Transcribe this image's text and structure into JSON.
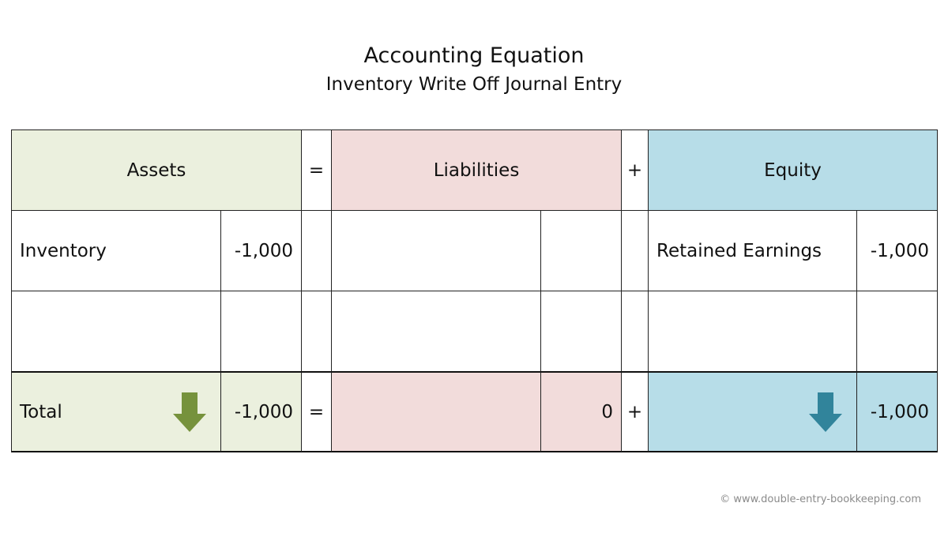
{
  "title": "Accounting Equation",
  "subtitle": "Inventory Write Off Journal Entry",
  "headers": {
    "assets": "Assets",
    "equals": "=",
    "liabilities": "Liabilities",
    "plus": "+",
    "equity": "Equity"
  },
  "rows": [
    {
      "asset_label": "Inventory",
      "asset_value": "-1,000",
      "liability_label": "",
      "liability_value": "",
      "equity_label": "Retained Earnings",
      "equity_value": "-1,000"
    },
    {
      "asset_label": "",
      "asset_value": "",
      "liability_label": "",
      "liability_value": "",
      "equity_label": "",
      "equity_value": ""
    }
  ],
  "total": {
    "label": "Total",
    "asset_value": "-1,000",
    "equals": "=",
    "liability_value": "0",
    "plus": "+",
    "equity_value": "-1,000",
    "asset_arrow_icon": "down-arrow-icon",
    "equity_arrow_icon": "down-arrow-icon"
  },
  "colors": {
    "assets_bg": "#ebf0de",
    "liabilities_bg": "#f2dcdb",
    "equity_bg": "#b7dde8",
    "asset_arrow": "#76923c",
    "equity_arrow": "#31849b"
  },
  "copyright": "© www.double-entry-bookkeeping.com"
}
